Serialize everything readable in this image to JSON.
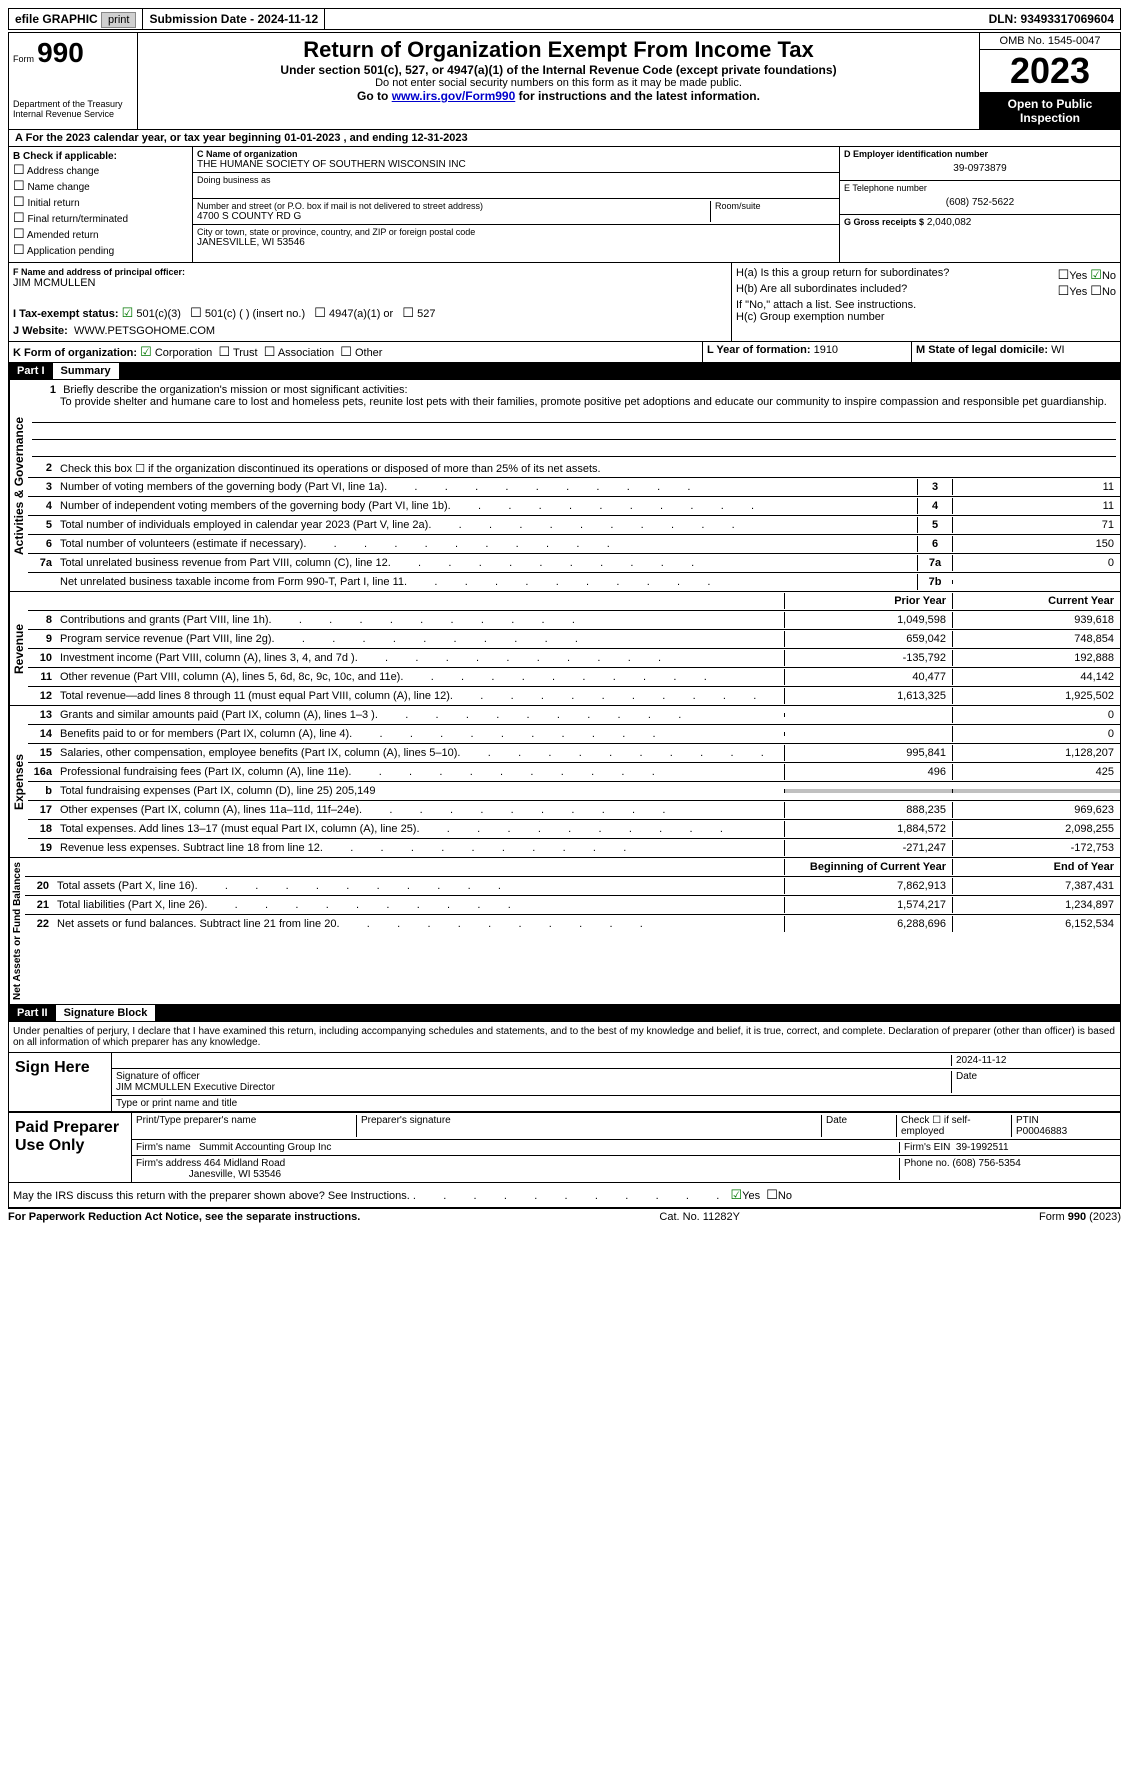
{
  "topbar": {
    "efile1": "efile",
    "efile2": "GRAPHIC",
    "efile3": "print",
    "submission": "Submission Date - 2024-11-12",
    "dln": "DLN: 93493317069604"
  },
  "header": {
    "form_label": "Form",
    "form_num": "990",
    "dept1": "Department of the Treasury",
    "dept2": "Internal Revenue Service",
    "title": "Return of Organization Exempt From Income Tax",
    "sub1": "Under section 501(c), 527, or 4947(a)(1) of the Internal Revenue Code (except private foundations)",
    "sub2": "Do not enter social security numbers on this form as it may be made public.",
    "sub3_pre": "Go to ",
    "sub3_link": "www.irs.gov/Form990",
    "sub3_post": " for instructions and the latest information.",
    "omb": "OMB No. 1545-0047",
    "year": "2023",
    "inspection": "Open to Public Inspection"
  },
  "line_a": "For the 2023 calendar year, or tax year beginning 01-01-2023   , and ending 12-31-2023",
  "col_b": {
    "head": "B Check if applicable:",
    "items": [
      "Address change",
      "Name change",
      "Initial return",
      "Final return/terminated",
      "Amended return",
      "Application pending"
    ]
  },
  "col_c": {
    "name_lbl": "C Name of organization",
    "name": "THE HUMANE SOCIETY OF SOUTHERN WISCONSIN INC",
    "dba_lbl": "Doing business as",
    "addr_lbl": "Number and street (or P.O. box if mail is not delivered to street address)",
    "addr": "4700 S COUNTY RD G",
    "room_lbl": "Room/suite",
    "city_lbl": "City or town, state or province, country, and ZIP or foreign postal code",
    "city": "JANESVILLE, WI  53546"
  },
  "col_d": {
    "ein_lbl": "D Employer identification number",
    "ein": "39-0973879",
    "phone_lbl": "E Telephone number",
    "phone": "(608) 752-5622",
    "gross_lbl": "G Gross receipts $",
    "gross": "2,040,082"
  },
  "officer": {
    "lbl": "F  Name and address of principal officer:",
    "name": "JIM MCMULLEN"
  },
  "tax_status": {
    "lbl": "I   Tax-exempt status:",
    "c3": "501(c)(3)",
    "c": "501(c) (  ) (insert no.)",
    "a1": "4947(a)(1) or",
    "s527": "527"
  },
  "website": {
    "lbl": "J   Website:",
    "val": "WWW.PETSGOHOME.COM"
  },
  "h_block": {
    "ha": "H(a)  Is this a group return for subordinates?",
    "hb": "H(b)  Are all subordinates included?",
    "hb2": "If \"No,\" attach a list. See instructions.",
    "hc": "H(c)  Group exemption number",
    "yes": "Yes",
    "no": "No"
  },
  "k": "K Form of organization:",
  "k_opts": [
    "Corporation",
    "Trust",
    "Association",
    "Other"
  ],
  "l": {
    "lbl": "L Year of formation:",
    "val": "1910"
  },
  "m": {
    "lbl": "M State of legal domicile:",
    "val": "WI"
  },
  "part1": {
    "num": "Part I",
    "title": "Summary"
  },
  "mission": {
    "lbl": "Briefly describe the organization's mission or most significant activities:",
    "text": "To provide shelter and humane care to lost and homeless pets, reunite lost pets with their families, promote positive pet adoptions and educate our community to inspire compassion and responsible pet guardianship."
  },
  "vtabs": {
    "gov": "Activities & Governance",
    "rev": "Revenue",
    "exp": "Expenses",
    "net": "Net Assets or Fund Balances"
  },
  "gov_lines": {
    "l2": "Check this box ☐ if the organization discontinued its operations or disposed of more than 25% of its net assets.",
    "l3": {
      "d": "Number of voting members of the governing body (Part VI, line 1a)",
      "b": "3",
      "v": "11"
    },
    "l4": {
      "d": "Number of independent voting members of the governing body (Part VI, line 1b)",
      "b": "4",
      "v": "11"
    },
    "l5": {
      "d": "Total number of individuals employed in calendar year 2023 (Part V, line 2a)",
      "b": "5",
      "v": "71"
    },
    "l6": {
      "d": "Total number of volunteers (estimate if necessary)",
      "b": "6",
      "v": "150"
    },
    "l7a": {
      "d": "Total unrelated business revenue from Part VIII, column (C), line 12",
      "b": "7a",
      "v": "0"
    },
    "l7b": {
      "d": "Net unrelated business taxable income from Form 990-T, Part I, line 11",
      "b": "7b",
      "v": ""
    }
  },
  "cols": {
    "prior": "Prior Year",
    "current": "Current Year",
    "begin": "Beginning of Current Year",
    "end": "End of Year"
  },
  "rev_lines": [
    {
      "n": "8",
      "d": "Contributions and grants (Part VIII, line 1h)",
      "p": "1,049,598",
      "c": "939,618"
    },
    {
      "n": "9",
      "d": "Program service revenue (Part VIII, line 2g)",
      "p": "659,042",
      "c": "748,854"
    },
    {
      "n": "10",
      "d": "Investment income (Part VIII, column (A), lines 3, 4, and 7d )",
      "p": "-135,792",
      "c": "192,888"
    },
    {
      "n": "11",
      "d": "Other revenue (Part VIII, column (A), lines 5, 6d, 8c, 9c, 10c, and 11e)",
      "p": "40,477",
      "c": "44,142"
    },
    {
      "n": "12",
      "d": "Total revenue—add lines 8 through 11 (must equal Part VIII, column (A), line 12)",
      "p": "1,613,325",
      "c": "1,925,502"
    }
  ],
  "exp_lines": [
    {
      "n": "13",
      "d": "Grants and similar amounts paid (Part IX, column (A), lines 1–3 )",
      "p": "",
      "c": "0"
    },
    {
      "n": "14",
      "d": "Benefits paid to or for members (Part IX, column (A), line 4)",
      "p": "",
      "c": "0"
    },
    {
      "n": "15",
      "d": "Salaries, other compensation, employee benefits (Part IX, column (A), lines 5–10)",
      "p": "995,841",
      "c": "1,128,207"
    },
    {
      "n": "16a",
      "d": "Professional fundraising fees (Part IX, column (A), line 11e)",
      "p": "496",
      "c": "425"
    },
    {
      "n": "b",
      "d": "Total fundraising expenses (Part IX, column (D), line 25) 205,149",
      "p": "SHADE",
      "c": "SHADE"
    },
    {
      "n": "17",
      "d": "Other expenses (Part IX, column (A), lines 11a–11d, 11f–24e)",
      "p": "888,235",
      "c": "969,623"
    },
    {
      "n": "18",
      "d": "Total expenses. Add lines 13–17 (must equal Part IX, column (A), line 25)",
      "p": "1,884,572",
      "c": "2,098,255"
    },
    {
      "n": "19",
      "d": "Revenue less expenses. Subtract line 18 from line 12",
      "p": "-271,247",
      "c": "-172,753"
    }
  ],
  "net_lines": [
    {
      "n": "20",
      "d": "Total assets (Part X, line 16)",
      "p": "7,862,913",
      "c": "7,387,431"
    },
    {
      "n": "21",
      "d": "Total liabilities (Part X, line 26)",
      "p": "1,574,217",
      "c": "1,234,897"
    },
    {
      "n": "22",
      "d": "Net assets or fund balances. Subtract line 21 from line 20",
      "p": "6,288,696",
      "c": "6,152,534"
    }
  ],
  "part2": {
    "num": "Part II",
    "title": "Signature Block"
  },
  "perjury": "Under penalties of perjury, I declare that I have examined this return, including accompanying schedules and statements, and to the best of my knowledge and belief, it is true, correct, and complete. Declaration of preparer (other than officer) is based on all information of which preparer has any knowledge.",
  "sign": {
    "here": "Sign Here",
    "sig_lbl": "Signature of officer",
    "date": "2024-11-12",
    "date_lbl": "Date",
    "name": "JIM MCMULLEN  Executive Director",
    "type_lbl": "Type or print name and title"
  },
  "paid": {
    "title": "Paid Preparer Use Only",
    "name_lbl": "Print/Type preparer's name",
    "sig_lbl": "Preparer's signature",
    "date_lbl": "Date",
    "check_lbl": "Check ☐ if self-employed",
    "ptin_lbl": "PTIN",
    "ptin": "P00046883",
    "firm_name_lbl": "Firm's name",
    "firm_name": "Summit Accounting Group Inc",
    "firm_ein_lbl": "Firm's EIN",
    "firm_ein": "39-1992511",
    "firm_addr_lbl": "Firm's address",
    "firm_addr1": "464 Midland Road",
    "firm_addr2": "Janesville, WI  53546",
    "phone_lbl": "Phone no.",
    "phone": "(608) 756-5354"
  },
  "discuss": "May the IRS discuss this return with the preparer shown above? See Instructions.",
  "footer": {
    "left": "For Paperwork Reduction Act Notice, see the separate instructions.",
    "mid": "Cat. No. 11282Y",
    "right": "Form 990 (2023)"
  }
}
